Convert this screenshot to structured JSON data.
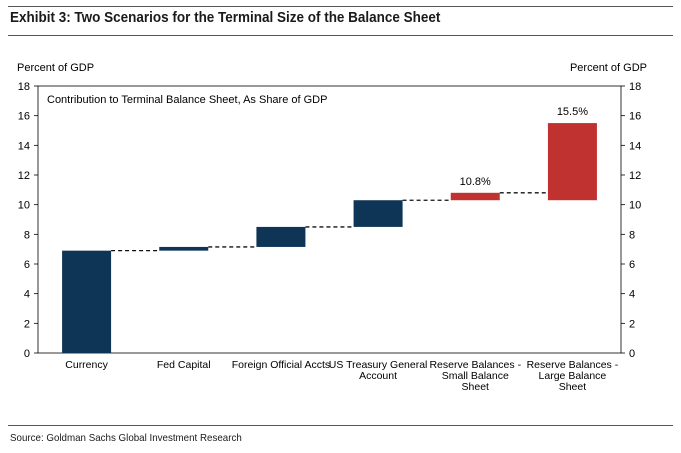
{
  "exhibit_title": "Exhibit 3: Two Scenarios for the Terminal Size of the Balance Sheet",
  "source": "Source: Goldman Sachs Global Investment Research",
  "colors": {
    "navy": "#0f3556",
    "red": "#c0322f",
    "connector": "#111111",
    "rule": "#555555"
  },
  "chart_data": {
    "type": "bar",
    "subtype": "waterfall",
    "title": "Contribution to Terminal Balance Sheet, As Share of GDP",
    "ylabel_left": "Percent of GDP",
    "ylabel_right": "Percent of GDP",
    "ylim": [
      0,
      18
    ],
    "yticks": [
      0,
      2,
      4,
      6,
      8,
      10,
      12,
      14,
      16,
      18
    ],
    "grid": false,
    "connectors": "dashed",
    "categories": [
      [
        "Currency"
      ],
      [
        "Fed Capital"
      ],
      [
        "Foreign Official Accts"
      ],
      [
        "US Treasury General",
        "Account"
      ],
      [
        "Reserve Balances -",
        "Small Balance",
        "Sheet"
      ],
      [
        "Reserve Balances -",
        "Large Balance",
        "Sheet"
      ]
    ],
    "bars": [
      {
        "base": 0,
        "top": 6.9,
        "color": "navy",
        "label": ""
      },
      {
        "base": 6.9,
        "top": 7.15,
        "color": "navy",
        "label": ""
      },
      {
        "base": 7.15,
        "top": 8.5,
        "color": "navy",
        "label": ""
      },
      {
        "base": 8.5,
        "top": 10.3,
        "color": "navy",
        "label": ""
      },
      {
        "base": 10.3,
        "top": 10.8,
        "color": "red",
        "label": "10.8%"
      },
      {
        "base": 10.3,
        "top": 15.5,
        "color": "red",
        "label": "15.5%"
      }
    ]
  }
}
